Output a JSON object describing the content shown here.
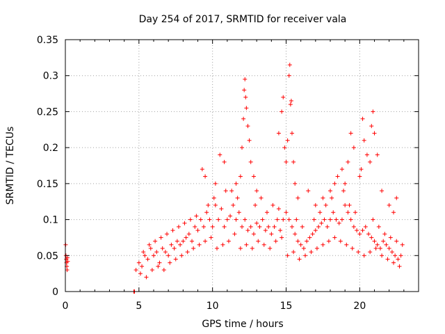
{
  "chart_data": {
    "type": "scatter",
    "title": "Day 254 of 2017, SRMTID for receiver vala",
    "xlabel": "GPS time / hours",
    "ylabel": "SRMTID / TECUs",
    "xlim": [
      0,
      24
    ],
    "ylim": [
      0,
      0.35
    ],
    "grid": true,
    "marker": "plus",
    "color": "#ff0000",
    "x_ticks": [
      {
        "value": 0,
        "label": "0"
      },
      {
        "value": 5,
        "label": "5"
      },
      {
        "value": 10,
        "label": "10"
      },
      {
        "value": 15,
        "label": "15"
      },
      {
        "value": 20,
        "label": "20"
      }
    ],
    "y_ticks": [
      {
        "value": 0,
        "label": "0"
      },
      {
        "value": 0.05,
        "label": "0.05"
      },
      {
        "value": 0.1,
        "label": "0.1"
      },
      {
        "value": 0.15,
        "label": "0.15"
      },
      {
        "value": 0.2,
        "label": "0.2"
      },
      {
        "value": 0.25,
        "label": "0.25"
      },
      {
        "value": 0.3,
        "label": "0.3"
      },
      {
        "value": 0.35,
        "label": "0.35"
      }
    ],
    "series": [
      {
        "name": "SRMTID",
        "x": [
          0.02,
          0.04,
          0.06,
          0.08,
          0.1,
          0.12,
          0.14,
          0.16,
          4.65,
          4.7,
          4.8,
          5.0,
          5.2,
          5.4,
          5.6,
          5.8,
          6.0,
          6.2,
          6.4,
          6.6,
          6.8,
          7.0,
          7.2,
          7.4,
          7.6,
          7.8,
          8.0,
          8.2,
          8.4,
          8.6,
          8.8,
          9.0,
          9.2,
          9.4,
          9.6,
          9.8,
          10.0,
          10.2,
          10.4,
          10.6,
          10.8,
          11.0,
          11.2,
          11.4,
          11.6,
          11.8,
          12.0,
          12.2,
          12.4,
          12.6,
          12.8,
          13.0,
          13.2,
          13.4,
          13.6,
          13.8,
          14.0,
          14.2,
          14.4,
          14.6,
          14.8,
          15.0,
          15.2,
          15.4,
          15.6,
          15.8,
          16.0,
          16.2,
          16.4,
          16.6,
          16.8,
          17.0,
          17.2,
          17.4,
          17.6,
          17.8,
          18.0,
          18.2,
          18.4,
          18.6,
          18.8,
          19.0,
          19.2,
          19.4,
          19.6,
          19.8,
          20.0,
          20.2,
          20.4,
          20.6,
          20.8,
          21.0,
          21.2,
          21.4,
          21.6,
          21.8,
          22.0,
          22.2,
          22.4,
          22.6,
          22.8,
          5.1,
          5.5,
          5.9,
          6.3,
          6.7,
          7.1,
          7.5,
          7.9,
          8.3,
          8.7,
          9.1,
          9.5,
          9.9,
          10.3,
          10.7,
          11.1,
          11.5,
          11.9,
          12.3,
          12.7,
          13.1,
          13.5,
          13.9,
          14.3,
          14.7,
          15.1,
          15.5,
          15.9,
          16.3,
          16.7,
          17.1,
          17.5,
          17.9,
          18.3,
          18.7,
          19.1,
          19.5,
          19.9,
          20.3,
          20.7,
          21.1,
          21.5,
          21.9,
          22.3,
          22.7,
          9.3,
          9.5,
          10.2,
          10.5,
          10.8,
          11.3,
          11.6,
          11.9,
          12.0,
          12.1,
          12.15,
          12.2,
          12.25,
          12.3,
          12.4,
          12.5,
          12.6,
          12.8,
          13.0,
          13.3,
          14.5,
          14.7,
          14.8,
          14.9,
          15.0,
          15.1,
          15.2,
          15.25,
          15.3,
          15.35,
          15.4,
          15.5,
          15.6,
          15.8,
          16.5,
          17.0,
          17.5,
          18.0,
          18.3,
          18.5,
          18.8,
          19.0,
          19.2,
          19.4,
          19.6,
          20.0,
          20.1,
          20.2,
          20.3,
          20.5,
          20.7,
          20.8,
          20.9,
          21.0,
          21.2,
          21.5,
          22.0,
          22.3,
          22.5,
          5.3,
          5.7,
          6.1,
          6.5,
          6.9,
          7.3,
          7.7,
          8.1,
          8.5,
          8.9,
          9.7,
          10.1,
          10.9,
          11.7,
          12.9,
          13.7,
          14.1,
          14.5,
          15.7,
          16.1,
          16.9,
          17.3,
          17.7,
          18.1,
          18.9,
          19.3,
          19.7,
          20.9,
          21.3,
          21.7,
          22.1,
          22.5,
          22.9
        ],
        "y": [
          0.065,
          0.05,
          0.045,
          0.04,
          0.035,
          0.03,
          0.047,
          0.042,
          0.0,
          0.0,
          0.03,
          0.04,
          0.035,
          0.05,
          0.045,
          0.06,
          0.05,
          0.055,
          0.04,
          0.06,
          0.055,
          0.05,
          0.065,
          0.06,
          0.07,
          0.065,
          0.07,
          0.075,
          0.08,
          0.07,
          0.09,
          0.085,
          0.1,
          0.09,
          0.11,
          0.1,
          0.09,
          0.12,
          0.1,
          0.115,
          0.09,
          0.1,
          0.105,
          0.12,
          0.1,
          0.11,
          0.09,
          0.1,
          0.085,
          0.09,
          0.08,
          0.095,
          0.09,
          0.1,
          0.085,
          0.09,
          0.08,
          0.09,
          0.1,
          0.085,
          0.1,
          0.11,
          0.1,
          0.09,
          0.08,
          0.07,
          0.065,
          0.06,
          0.07,
          0.075,
          0.08,
          0.085,
          0.09,
          0.095,
          0.1,
          0.09,
          0.1,
          0.11,
          0.1,
          0.095,
          0.1,
          0.12,
          0.11,
          0.1,
          0.09,
          0.085,
          0.08,
          0.085,
          0.09,
          0.08,
          0.075,
          0.07,
          0.065,
          0.06,
          0.07,
          0.065,
          0.06,
          0.055,
          0.05,
          0.045,
          0.05,
          0.025,
          0.02,
          0.03,
          0.035,
          0.03,
          0.04,
          0.045,
          0.05,
          0.055,
          0.06,
          0.065,
          0.07,
          0.075,
          0.06,
          0.065,
          0.07,
          0.08,
          0.06,
          0.065,
          0.06,
          0.07,
          0.065,
          0.06,
          0.07,
          0.075,
          0.05,
          0.055,
          0.045,
          0.05,
          0.055,
          0.06,
          0.065,
          0.07,
          0.075,
          0.07,
          0.065,
          0.06,
          0.055,
          0.05,
          0.055,
          0.06,
          0.05,
          0.045,
          0.04,
          0.035,
          0.17,
          0.16,
          0.15,
          0.19,
          0.18,
          0.14,
          0.15,
          0.16,
          0.2,
          0.24,
          0.28,
          0.295,
          0.27,
          0.255,
          0.23,
          0.21,
          0.18,
          0.16,
          0.14,
          0.13,
          0.22,
          0.25,
          0.27,
          0.2,
          0.18,
          0.21,
          0.3,
          0.315,
          0.26,
          0.265,
          0.22,
          0.18,
          0.15,
          0.13,
          0.14,
          0.12,
          0.13,
          0.14,
          0.15,
          0.16,
          0.17,
          0.15,
          0.18,
          0.22,
          0.2,
          0.16,
          0.17,
          0.24,
          0.21,
          0.19,
          0.18,
          0.23,
          0.25,
          0.22,
          0.19,
          0.14,
          0.12,
          0.11,
          0.13,
          0.055,
          0.065,
          0.07,
          0.075,
          0.08,
          0.085,
          0.09,
          0.095,
          0.1,
          0.105,
          0.12,
          0.13,
          0.14,
          0.13,
          0.12,
          0.11,
          0.12,
          0.115,
          0.1,
          0.09,
          0.1,
          0.11,
          0.12,
          0.13,
          0.14,
          0.12,
          0.11,
          0.1,
          0.09,
          0.08,
          0.075,
          0.07,
          0.065
        ]
      }
    ]
  }
}
